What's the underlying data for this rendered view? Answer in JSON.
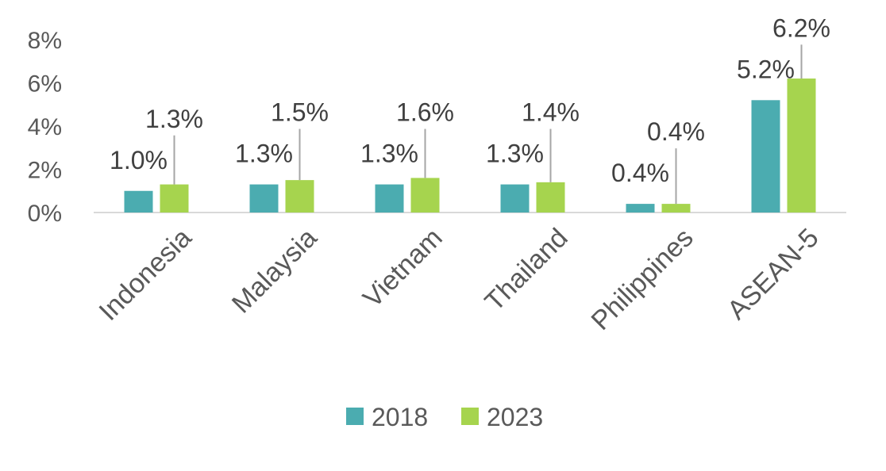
{
  "chart_data": {
    "type": "bar",
    "categories": [
      "Indonesia",
      "Malaysia",
      "Vietnam",
      "Thailand",
      "Philippines",
      "ASEAN-5"
    ],
    "series": [
      {
        "name": "2018",
        "values": [
          1.0,
          1.3,
          1.3,
          1.3,
          0.4,
          5.2
        ],
        "labels": [
          "1.0%",
          "1.3%",
          "1.3%",
          "1.3%",
          "0.4%",
          "5.2%"
        ],
        "color": "#4BACB0"
      },
      {
        "name": "2023",
        "values": [
          1.3,
          1.5,
          1.6,
          1.4,
          0.4,
          6.2
        ],
        "labels": [
          "1.3%",
          "1.5%",
          "1.6%",
          "1.4%",
          "0.4%",
          "6.2%"
        ],
        "color": "#A6D44E"
      }
    ],
    "y_ticks": [
      "0%",
      "2%",
      "4%",
      "6%",
      "8%"
    ],
    "ylim": [
      0,
      8
    ],
    "legend_position": "bottom",
    "grid": false
  }
}
